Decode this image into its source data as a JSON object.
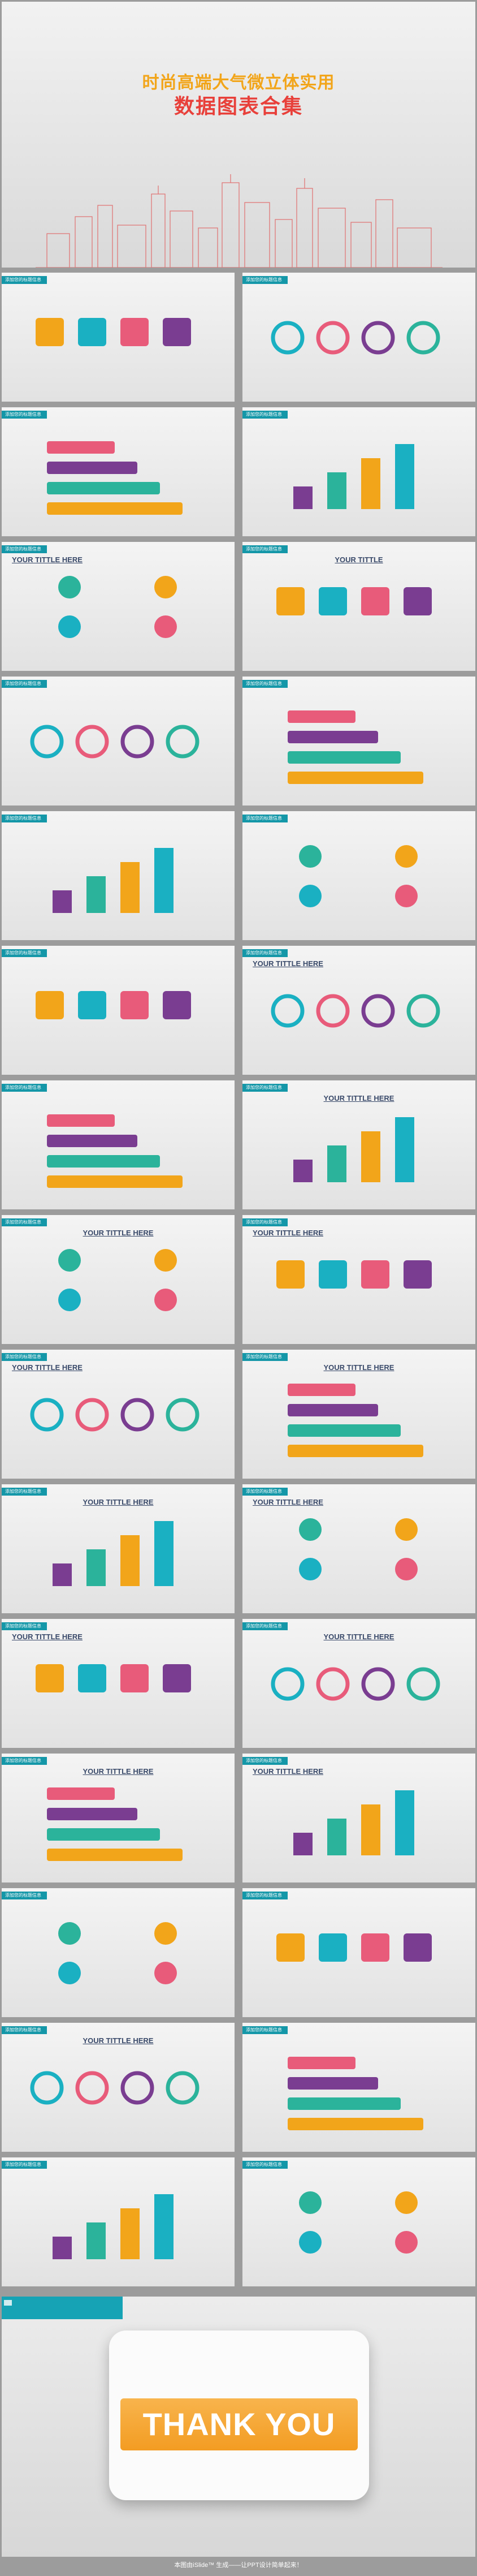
{
  "cover": {
    "title_line1": "时尚高端大气微立体实用",
    "title_line2": "数据图表合集"
  },
  "slides": [
    {
      "tag": "添加您的标题信息",
      "heading": ""
    },
    {
      "tag": "添加您的标题信息",
      "heading": ""
    },
    {
      "tag": "添加您的标题信息",
      "heading": ""
    },
    {
      "tag": "添加您的标题信息",
      "heading": ""
    },
    {
      "tag": "添加您的标题信息",
      "heading": "YOUR TITTLE HERE"
    },
    {
      "tag": "添加您的标题信息",
      "heading": "YOUR TITTLE"
    },
    {
      "tag": "添加您的标题信息",
      "heading": ""
    },
    {
      "tag": "添加您的标题信息",
      "heading": ""
    },
    {
      "tag": "添加您的标题信息",
      "heading": ""
    },
    {
      "tag": "添加您的标题信息",
      "heading": ""
    },
    {
      "tag": "添加您的标题信息",
      "heading": ""
    },
    {
      "tag": "添加您的标题信息",
      "heading": "YOUR TITTLE HERE"
    },
    {
      "tag": "添加您的标题信息",
      "heading": ""
    },
    {
      "tag": "添加您的标题信息",
      "heading": "YOUR TITTLE HERE"
    },
    {
      "tag": "添加您的标题信息",
      "heading": "YOUR TITTLE HERE"
    },
    {
      "tag": "添加您的标题信息",
      "heading": "YOUR TITTLE HERE"
    },
    {
      "tag": "添加您的标题信息",
      "heading": "YOUR TITTLE HERE"
    },
    {
      "tag": "添加您的标题信息",
      "heading": "YOUR TITTLE HERE"
    },
    {
      "tag": "添加您的标题信息",
      "heading": "YOUR TITTLE HERE"
    },
    {
      "tag": "添加您的标题信息",
      "heading": "YOUR TITTLE HERE"
    },
    {
      "tag": "添加您的标题信息",
      "heading": "YOUR TITTLE HERE"
    },
    {
      "tag": "添加您的标题信息",
      "heading": "YOUR TITTLE HERE"
    },
    {
      "tag": "添加您的标题信息",
      "heading": "YOUR TITTLE HERE"
    },
    {
      "tag": "添加您的标题信息",
      "heading": "YOUR TITTLE HERE"
    },
    {
      "tag": "添加您的标题信息",
      "heading": ""
    },
    {
      "tag": "添加您的标题信息",
      "heading": ""
    },
    {
      "tag": "添加您的标题信息",
      "heading": "YOUR TITTLE HERE"
    },
    {
      "tag": "添加您的标题信息",
      "heading": ""
    },
    {
      "tag": "添加您的标题信息",
      "heading": ""
    },
    {
      "tag": "添加您的标题信息",
      "heading": ""
    }
  ],
  "thank_you": "THANK YOU",
  "footer": "本图由iSlide™ 生成——让PPT设计简单起来！",
  "colors": {
    "teal": "#1497a8",
    "orange": "#f2a51a",
    "red": "#e8403a",
    "pink": "#e85b7a",
    "purple": "#7a3d91",
    "green": "#2bb39b"
  }
}
